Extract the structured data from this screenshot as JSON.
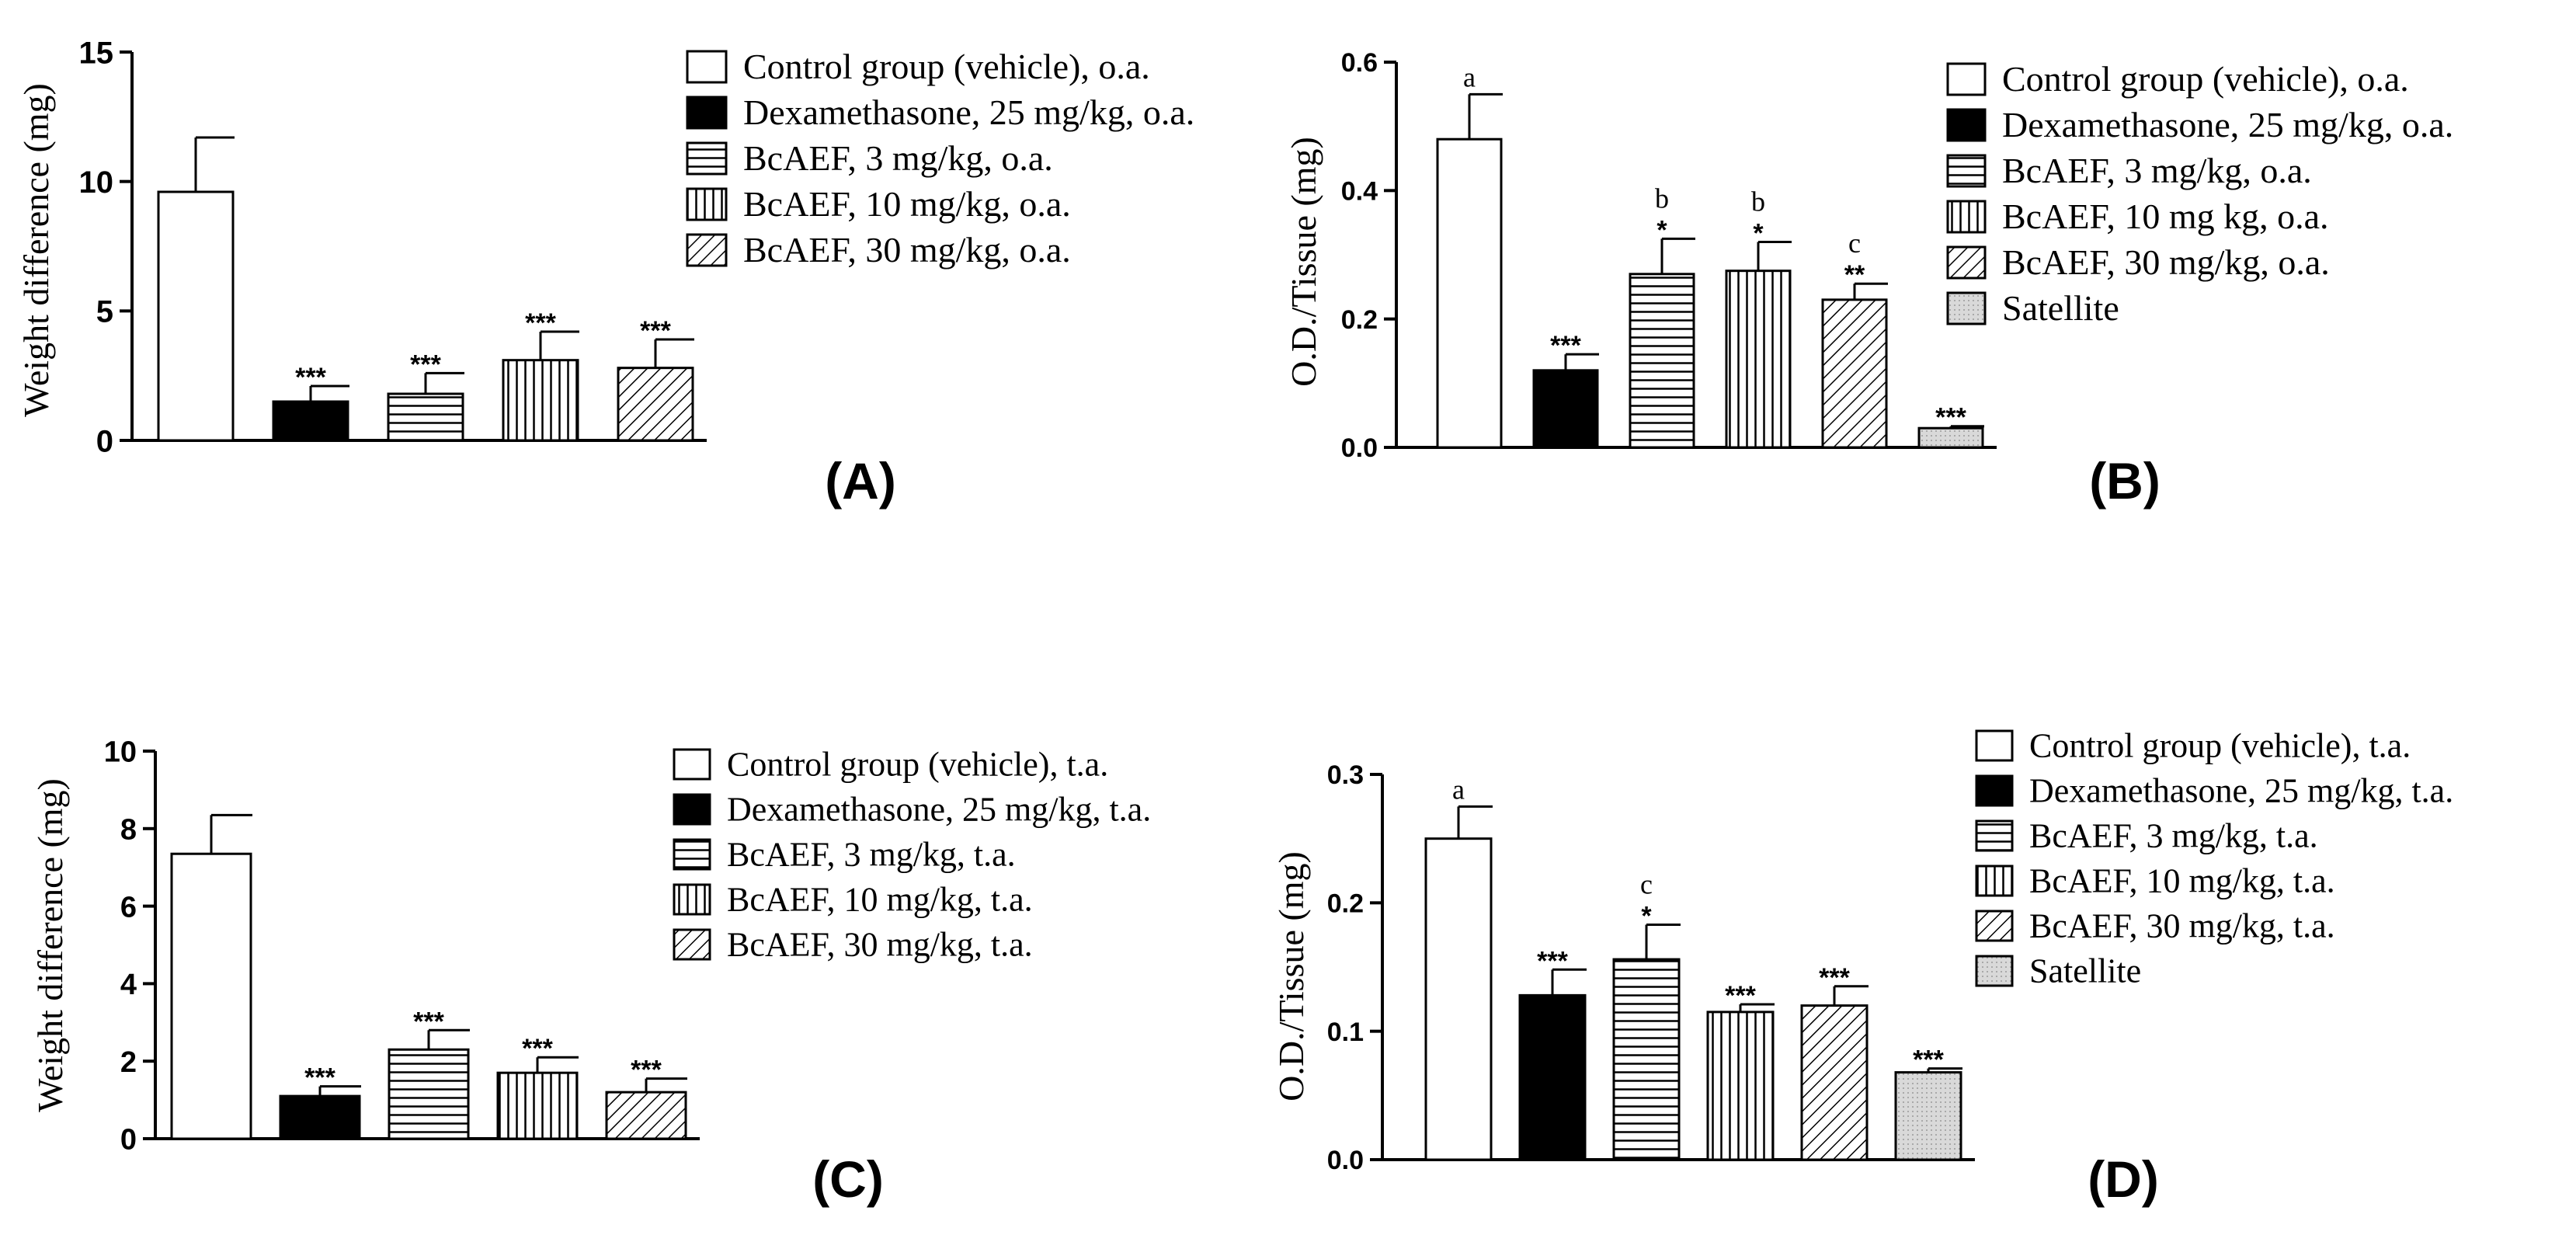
{
  "patterns": {
    "control": "white",
    "dexamethasone": "black",
    "bcaef3": "hlines",
    "bcaef10": "vlines",
    "bcaef30": "diag",
    "satellite": "dots"
  },
  "colors": {
    "ink": "#000000",
    "background": "#ffffff",
    "satellite_fill": "#d9d9d9"
  },
  "chart_data": [
    {
      "panel": "(A)",
      "type": "bar",
      "ylabel": "Weight difference (mg)",
      "ylim": [
        0,
        15
      ],
      "yticks": [
        "0",
        "5",
        "10",
        "15"
      ],
      "ytick_values": [
        0,
        5,
        10,
        15
      ],
      "categories": [
        "Control group (vehicle), o.a.",
        "Dexamethasone, 25 mg/kg, o.a.",
        "BcAEF, 3 mg/kg, o.a.",
        "BcAEF, 10 mg/kg, o.a.",
        "BcAEF, 30 mg/kg, o.a."
      ],
      "patterns": [
        "control",
        "dexamethasone",
        "bcaef3",
        "bcaef10",
        "bcaef30"
      ],
      "values": [
        9.6,
        1.5,
        1.8,
        3.1,
        2.8
      ],
      "errors": [
        2.1,
        0.6,
        0.8,
        1.1,
        1.1
      ],
      "stars": [
        "",
        "***",
        "***",
        "***",
        "***"
      ],
      "letters": [
        "",
        "",
        "",
        "",
        ""
      ],
      "legend": [
        "Control group (vehicle), o.a.",
        "Dexamethasone, 25 mg/kg, o.a.",
        "BcAEF, 3 mg/kg, o.a.",
        "BcAEF, 10 mg/kg, o.a.",
        "BcAEF, 30 mg/kg, o.a."
      ],
      "legend_patterns": [
        "control",
        "dexamethasone",
        "bcaef3",
        "bcaef10",
        "bcaef30"
      ]
    },
    {
      "panel": "(B)",
      "type": "bar",
      "ylabel": "O.D./Tissue (mg)",
      "ylim": [
        0,
        0.6
      ],
      "yticks": [
        "0.0",
        "0.2",
        "0.4",
        "0.6"
      ],
      "ytick_values": [
        0,
        0.2,
        0.4,
        0.6
      ],
      "categories": [
        "Control group (vehicle), o.a.",
        "Dexamethasone, 25 mg/kg, o.a.",
        "BcAEF, 3 mg/kg, o.a.",
        "BcAEF, 10 mg kg, o.a.",
        "BcAEF, 30 mg/kg, o.a.",
        "Satellite"
      ],
      "patterns": [
        "control",
        "dexamethasone",
        "bcaef3",
        "bcaef10",
        "bcaef30",
        "satellite"
      ],
      "values": [
        0.48,
        0.12,
        0.27,
        0.275,
        0.23,
        0.03
      ],
      "errors": [
        0.07,
        0.025,
        0.055,
        0.045,
        0.025,
        0.003
      ],
      "stars": [
        "",
        "***",
        "*",
        "*",
        "**",
        "***"
      ],
      "letters": [
        "a",
        "",
        "b",
        "b",
        "c",
        ""
      ],
      "legend": [
        "Control group (vehicle), o.a.",
        "Dexamethasone, 25 mg/kg, o.a.",
        "BcAEF, 3 mg/kg, o.a.",
        "BcAEF, 10 mg kg, o.a.",
        "BcAEF, 30 mg/kg, o.a.",
        "Satellite"
      ],
      "legend_patterns": [
        "control",
        "dexamethasone",
        "bcaef3",
        "bcaef10",
        "bcaef30",
        "satellite"
      ]
    },
    {
      "panel": "(C)",
      "type": "bar",
      "ylabel": "Weight difference (mg)",
      "ylim": [
        0,
        10
      ],
      "yticks": [
        "0",
        "2",
        "4",
        "6",
        "8",
        "10"
      ],
      "ytick_values": [
        0,
        2,
        4,
        6,
        8,
        10
      ],
      "categories": [
        "Control group (vehicle), t.a.",
        "Dexamethasone, 25 mg/kg, t.a.",
        "BcAEF, 3 mg/kg, t.a.",
        "BcAEF, 10 mg/kg, t.a.",
        "BcAEF, 30 mg/kg, t.a."
      ],
      "patterns": [
        "control",
        "dexamethasone",
        "bcaef3",
        "bcaef10",
        "bcaef30"
      ],
      "values": [
        7.35,
        1.1,
        2.3,
        1.7,
        1.2
      ],
      "errors": [
        1.0,
        0.25,
        0.5,
        0.4,
        0.35
      ],
      "stars": [
        "",
        "***",
        "***",
        "***",
        "***"
      ],
      "letters": [
        "",
        "",
        "",
        "",
        ""
      ],
      "legend": [
        "Control group (vehicle), t.a.",
        "Dexamethasone, 25 mg/kg, t.a.",
        "BcAEF, 3 mg/kg, t.a.",
        "BcAEF, 10 mg/kg, t.a.",
        "BcAEF, 30 mg/kg, t.a."
      ],
      "legend_patterns": [
        "control",
        "dexamethasone",
        "bcaef3",
        "bcaef10",
        "bcaef30"
      ]
    },
    {
      "panel": "(D)",
      "type": "bar",
      "ylabel": "O.D./Tissue (mg)",
      "ylim": [
        0,
        0.3
      ],
      "yticks": [
        "0.0",
        "0.1",
        "0.2",
        "0.3"
      ],
      "ytick_values": [
        0,
        0.1,
        0.2,
        0.3
      ],
      "categories": [
        "Control group (vehicle), t.a.",
        "Dexamethasone, 25 mg/kg, t.a.",
        "BcAEF, 3 mg/kg, t.a.",
        "BcAEF, 10 mg/kg, t.a.",
        "BcAEF, 30 mg/kg, t.a.",
        "Satellite"
      ],
      "patterns": [
        "control",
        "dexamethasone",
        "bcaef3",
        "bcaef10",
        "bcaef30",
        "satellite"
      ],
      "values": [
        0.25,
        0.128,
        0.156,
        0.115,
        0.12,
        0.068
      ],
      "errors": [
        0.025,
        0.02,
        0.027,
        0.006,
        0.015,
        0.003
      ],
      "stars": [
        "",
        "***",
        "*",
        "***",
        "***",
        "***"
      ],
      "letters": [
        "a",
        "",
        "c",
        "",
        "",
        ""
      ],
      "legend": [
        "Control group (vehicle), t.a.",
        "Dexamethasone, 25 mg/kg, t.a.",
        "BcAEF, 3 mg/kg, t.a.",
        "BcAEF, 10 mg/kg, t.a.",
        "BcAEF, 30 mg/kg, t.a.",
        "Satellite"
      ],
      "legend_patterns": [
        "control",
        "dexamethasone",
        "bcaef3",
        "bcaef10",
        "bcaef30",
        "satellite"
      ]
    }
  ]
}
